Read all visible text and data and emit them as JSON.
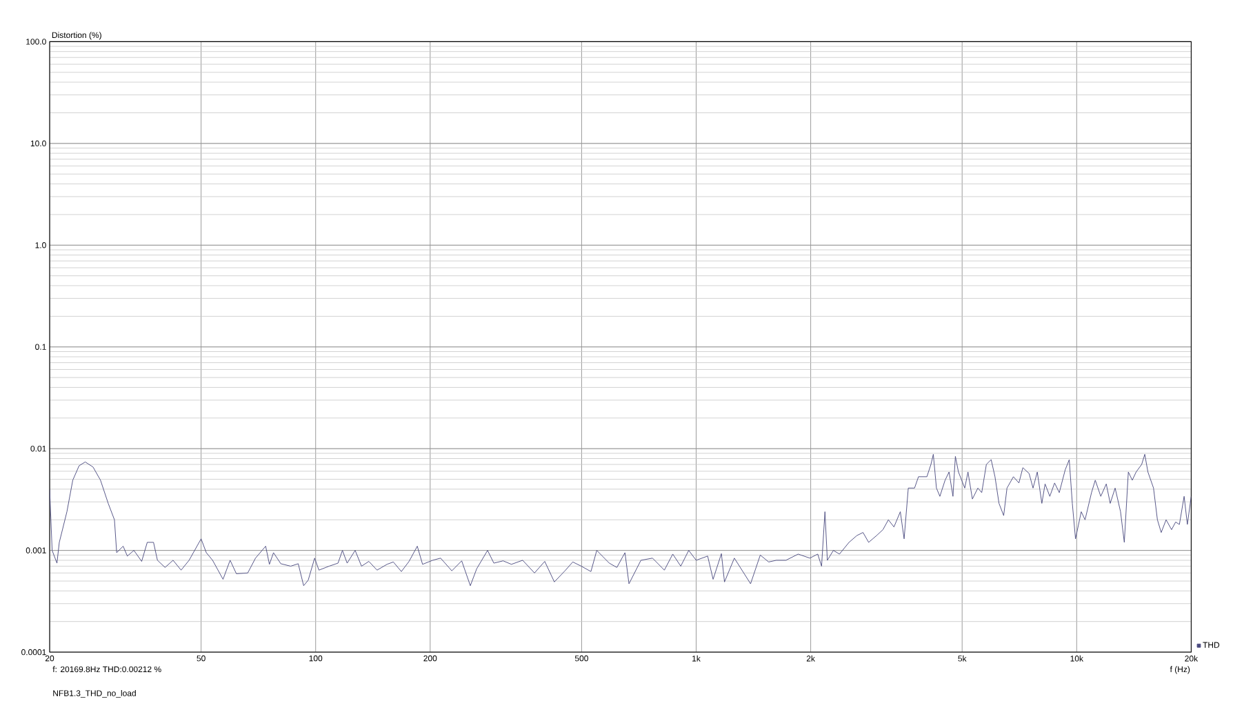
{
  "chart_data": {
    "type": "line",
    "ylabel": "Distortion (%)",
    "xlabel": "f (Hz)",
    "annotations": [
      "f: 20169.8Hz     THD:0.00212   %",
      "NFB1.3_THD_no_load"
    ],
    "log": "xy",
    "grid": true,
    "legend": "bottom right",
    "marker": "none",
    "line_style": "solid",
    "xlim": [
      20,
      20000
    ],
    "xticks": [
      20,
      50,
      100,
      200,
      500,
      {
        "value": 1000,
        "label": "1k"
      },
      {
        "value": 2000,
        "label": "2k"
      },
      {
        "value": 5000,
        "label": "5k"
      },
      {
        "value": 10000,
        "label": "10k"
      },
      {
        "value": 20000,
        "label": "20k"
      }
    ],
    "ylim": [
      0.0001,
      100
    ],
    "yticks": [
      0.0001,
      0.001,
      0.01,
      0.1,
      {
        "value": 1,
        "label": "1.0"
      },
      {
        "value": 10,
        "label": "10.0"
      },
      {
        "value": 100,
        "label": "100.0"
      }
    ],
    "x": [
      20,
      20.3,
      20.9,
      21.2,
      22.2,
      23,
      23.9,
      24.8,
      26,
      27.2,
      28.5,
      29.6,
      30,
      31.2,
      32,
      33.3,
      34.9,
      36.1,
      37.5,
      38.4,
      40.2,
      42.2,
      44.3,
      46.5,
      50,
      51.6,
      53.6,
      57.1,
      59.6,
      61.9,
      66.3,
      69.5,
      73.9,
      75.6,
      77.5,
      81,
      86,
      90,
      93,
      95.6,
      99.4,
      102,
      108.5,
      114.5,
      117.6,
      121,
      127,
      132,
      138,
      145,
      154,
      160,
      168,
      176,
      185,
      191,
      203,
      213,
      228,
      242,
      255,
      265,
      283,
      294,
      311,
      327,
      350,
      376,
      400,
      424,
      452,
      474,
      499,
      529,
      548,
      591,
      619,
      650,
      666,
      716,
      768,
      825,
      868,
      911,
      956,
      1000,
      1072,
      1108,
      1165,
      1187,
      1260,
      1390,
      1474,
      1551,
      1625,
      1722,
      1854,
      1990,
      2087,
      2136,
      2180,
      2212,
      2294,
      2380,
      2522,
      2645,
      2745,
      2840,
      2980,
      3097,
      3200,
      3310,
      3440,
      3520,
      3610,
      3750,
      3840,
      4040,
      4140,
      4200,
      4280,
      4370,
      4510,
      4620,
      4730,
      4800,
      4890,
      5080,
      5180,
      5320,
      5500,
      5630,
      5790,
      5960,
      6100,
      6250,
      6430,
      6560,
      6820,
      7050,
      7220,
      7500,
      7680,
      7880,
      8100,
      8260,
      8500,
      8750,
      9000,
      9330,
      9560,
      9740,
      9930,
      10280,
      10520,
      10940,
      11190,
      11570,
      11960,
      12250,
      12620,
      13040,
      13340,
      13670,
      14000,
      14330,
      14820,
      15100,
      15390,
      15920,
      16300,
      16680,
      17180,
      17760,
      18200,
      18620,
      19160,
      19540,
      20000
    ],
    "series": [
      {
        "name": "THD",
        "color": "#4b4b80",
        "values": [
          0.004,
          0.001,
          0.00075,
          0.0012,
          0.0024,
          0.0049,
          0.0068,
          0.0074,
          0.0066,
          0.0049,
          0.0029,
          0.002,
          0.00095,
          0.0011,
          0.00088,
          0.001,
          0.00078,
          0.0012,
          0.0012,
          0.0008,
          0.00068,
          0.0008,
          0.00064,
          0.0008,
          0.0013,
          0.00095,
          0.0008,
          0.00052,
          0.0008,
          0.00059,
          0.0006,
          0.00084,
          0.0011,
          0.00073,
          0.00095,
          0.00074,
          0.0007,
          0.00074,
          0.00045,
          0.00051,
          0.00084,
          0.00064,
          0.0007,
          0.00075,
          0.001,
          0.00075,
          0.001,
          0.0007,
          0.00078,
          0.00064,
          0.00073,
          0.00077,
          0.00062,
          0.00078,
          0.0011,
          0.00073,
          0.0008,
          0.00084,
          0.00063,
          0.00079,
          0.00045,
          0.00066,
          0.001,
          0.00075,
          0.00079,
          0.00073,
          0.0008,
          0.0006,
          0.00078,
          0.00049,
          0.00063,
          0.00077,
          0.0007,
          0.00062,
          0.001,
          0.00075,
          0.00068,
          0.00095,
          0.00047,
          0.0008,
          0.00084,
          0.00064,
          0.00092,
          0.0007,
          0.001,
          0.0008,
          0.00088,
          0.00052,
          0.00093,
          0.00049,
          0.00084,
          0.00047,
          0.0009,
          0.00077,
          0.0008,
          0.0008,
          0.00092,
          0.00084,
          0.00092,
          0.0007,
          0.0024,
          0.0008,
          0.001,
          0.00092,
          0.0012,
          0.0014,
          0.0015,
          0.0012,
          0.0014,
          0.0016,
          0.002,
          0.0017,
          0.0024,
          0.0013,
          0.0041,
          0.0041,
          0.0053,
          0.0053,
          0.007,
          0.0088,
          0.0041,
          0.0034,
          0.0049,
          0.0059,
          0.0034,
          0.0084,
          0.0059,
          0.0041,
          0.0059,
          0.0032,
          0.0041,
          0.0037,
          0.007,
          0.0078,
          0.0053,
          0.0029,
          0.0022,
          0.0041,
          0.0053,
          0.0046,
          0.0065,
          0.0057,
          0.0041,
          0.0059,
          0.0029,
          0.0045,
          0.0034,
          0.0046,
          0.0037,
          0.0062,
          0.0078,
          0.0029,
          0.0013,
          0.0024,
          0.002,
          0.0037,
          0.0049,
          0.0034,
          0.0045,
          0.0029,
          0.0041,
          0.0024,
          0.0012,
          0.0059,
          0.0049,
          0.0059,
          0.007,
          0.0088,
          0.0059,
          0.0041,
          0.002,
          0.0015,
          0.002,
          0.0016,
          0.0019,
          0.0018,
          0.0034,
          0.0018,
          0.0034
        ]
      }
    ]
  }
}
